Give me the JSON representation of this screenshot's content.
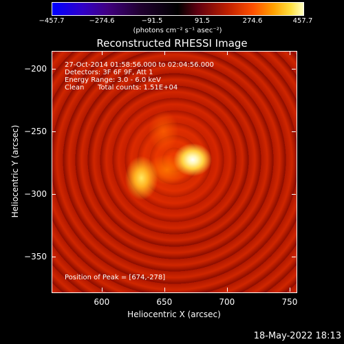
{
  "chart_data": {
    "type": "heatmap",
    "title": "Reconstructed RHESSI Image",
    "colorbar": {
      "ticks": [
        "−457.7",
        "−274.6",
        "−91.5",
        "91.5",
        "274.6",
        "457.7"
      ],
      "range": [
        -457.7,
        457.7
      ],
      "unit_label": "(photons cm⁻² s⁻¹ asec⁻²)",
      "colors": [
        "#0000ff",
        "#400080",
        "#000000",
        "#c02000",
        "#ffa000",
        "#ffffc0"
      ]
    },
    "xlabel": "Heliocentric X (arcsec)",
    "ylabel": "Heliocentric Y (arcsec)",
    "xlim": [
      560,
      755
    ],
    "ylim": [
      -378,
      -186
    ],
    "x_ticks": [
      "600",
      "650",
      "700",
      "750"
    ],
    "y_ticks": [
      "−200",
      "−250",
      "−300",
      "−350"
    ],
    "annotations": {
      "time_range": "27-Oct-2014 01:58:56.000 to 02:04:56.000",
      "detectors": "Detectors: 3F 6F 9F, Att 1",
      "energy": "Energy Range: 3.0 - 6.0 keV",
      "method": "Clean",
      "total_counts": "Total counts: 1.51E+04",
      "peak": "Position of Peak = [674,-278]"
    },
    "peak_position": [
      674,
      -278
    ]
  },
  "timestamp": "18-May-2022 18:13"
}
